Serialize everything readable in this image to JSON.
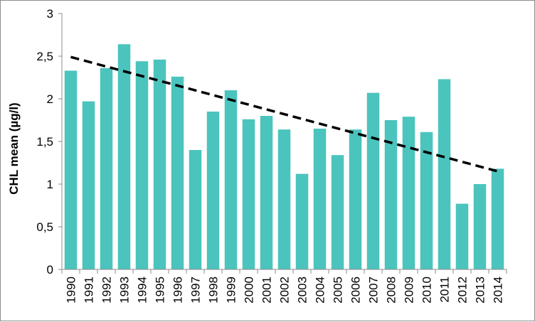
{
  "chart_data": {
    "type": "bar",
    "title": "",
    "xlabel": "",
    "ylabel": "CHL mean (µg/l)",
    "categories": [
      "1990",
      "1991",
      "1992",
      "1993",
      "1994",
      "1995",
      "1996",
      "1997",
      "1998",
      "1999",
      "2000",
      "2001",
      "2002",
      "2003",
      "2004",
      "2005",
      "2006",
      "2007",
      "2008",
      "2009",
      "2010",
      "2011",
      "2012",
      "2013",
      "2014"
    ],
    "series": [
      {
        "values": [
          2.33,
          1.97,
          2.36,
          2.64,
          2.44,
          2.46,
          2.26,
          1.4,
          1.85,
          2.1,
          1.76,
          1.8,
          1.64,
          1.12,
          1.65,
          1.34,
          1.64,
          2.07,
          1.75,
          1.79,
          1.61,
          2.23,
          0.77,
          1.0,
          1.18
        ],
        "color": "#4bc4bd"
      }
    ],
    "trendline": {
      "style": "dashed",
      "color": "#000000",
      "start": 2.49,
      "end": 1.15
    },
    "ylim": [
      0,
      3
    ],
    "yticks": [
      {
        "value": 0,
        "label": "0"
      },
      {
        "value": 0.5,
        "label": "0,5"
      },
      {
        "value": 1,
        "label": "1"
      },
      {
        "value": 1.5,
        "label": "1,5"
      },
      {
        "value": 2,
        "label": "2"
      },
      {
        "value": 2.5,
        "label": "2,5"
      },
      {
        "value": 3,
        "label": "3"
      }
    ],
    "grid": false,
    "legend": "none"
  }
}
